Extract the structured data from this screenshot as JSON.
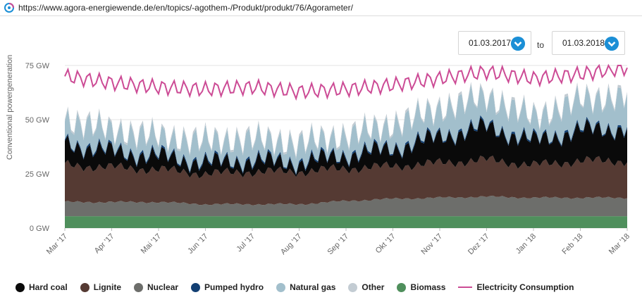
{
  "browser": {
    "url": "https://www.agora-energiewende.de/en/topics/-agothem-/Produkt/produkt/76/Agorameter/",
    "logo_icon": "agora-logo-icon"
  },
  "date_range": {
    "from": "01.03.2017",
    "to_label": "to",
    "to": "01.03.2018",
    "dropdown_icon": "chevron-down-icon"
  },
  "chart_data": {
    "type": "area",
    "title": "",
    "ylabel": "Conventional powergeneration",
    "ylim": [
      0,
      75
    ],
    "yticks": [
      0,
      25,
      50,
      75
    ],
    "ytick_labels": [
      "0 GW",
      "25 GW",
      "50 GW",
      "75 GW"
    ],
    "grid": "horizontal",
    "legend_position": "bottom",
    "x": [
      "Mar '17",
      "Apr '17",
      "Mai '17",
      "Jun '17",
      "Jul '17",
      "Aug '17",
      "Sep '17",
      "Okt '17",
      "Nov '17",
      "Dez '17",
      "Jan '18",
      "Feb '18",
      "Mar '18"
    ],
    "series": [
      {
        "name": "Biomass",
        "color": "#4f8f5c",
        "values": [
          5.5,
          5.5,
          5.5,
          5.5,
          5.5,
          5.5,
          5.5,
          5.5,
          5.5,
          5.5,
          5.5,
          5.5,
          5.5
        ]
      },
      {
        "name": "Nuclear",
        "color": "#6d6e6b",
        "values": [
          6.5,
          6.5,
          6.5,
          5.5,
          5.5,
          5.5,
          7,
          8,
          8.5,
          9,
          8.5,
          8.5,
          8.5
        ]
      },
      {
        "name": "Lignite",
        "color": "#553a33",
        "values": [
          17,
          16,
          15,
          14,
          15,
          15,
          15,
          15,
          16,
          17,
          15,
          17,
          17
        ]
      },
      {
        "name": "Hard coal",
        "color": "#0a0a0a",
        "values": [
          10,
          7,
          6,
          5,
          5,
          4,
          6,
          8,
          12,
          15,
          11,
          14,
          15
        ]
      },
      {
        "name": "Pumped hydro",
        "color": "#123f73",
        "values": [
          0.8,
          0.8,
          0.8,
          0.8,
          0.8,
          0.8,
          0.8,
          0.8,
          0.8,
          0.8,
          0.8,
          0.8,
          0.8
        ]
      },
      {
        "name": "Natural gas",
        "color": "#a2bfcc",
        "values": [
          10,
          9,
          8,
          9,
          9,
          8,
          8,
          10,
          12,
          13,
          10,
          13,
          14
        ]
      },
      {
        "name": "Other",
        "color": "#c3ccd3",
        "values": [
          1,
          1,
          1,
          1,
          1,
          1,
          1,
          1,
          1,
          1,
          1,
          1,
          1
        ]
      },
      {
        "name": "Electricity Consumption",
        "color": "#cc4b95",
        "type": "line",
        "values": [
          70,
          67,
          65,
          64,
          65,
          63,
          64,
          66,
          69,
          72,
          69,
          71,
          74
        ]
      }
    ]
  },
  "legend": [
    {
      "name": "Hard coal",
      "color": "#0a0a0a",
      "kind": "dot"
    },
    {
      "name": "Lignite",
      "color": "#553a33",
      "kind": "dot"
    },
    {
      "name": "Nuclear",
      "color": "#6d6e6b",
      "kind": "dot"
    },
    {
      "name": "Pumped hydro",
      "color": "#123f73",
      "kind": "dot"
    },
    {
      "name": "Natural gas",
      "color": "#a2bfcc",
      "kind": "dot"
    },
    {
      "name": "Other",
      "color": "#c3ccd3",
      "kind": "dot"
    },
    {
      "name": "Biomass",
      "color": "#4f8f5c",
      "kind": "dot"
    },
    {
      "name": "Electricity Consumption",
      "color": "#cc4b95",
      "kind": "line"
    }
  ]
}
